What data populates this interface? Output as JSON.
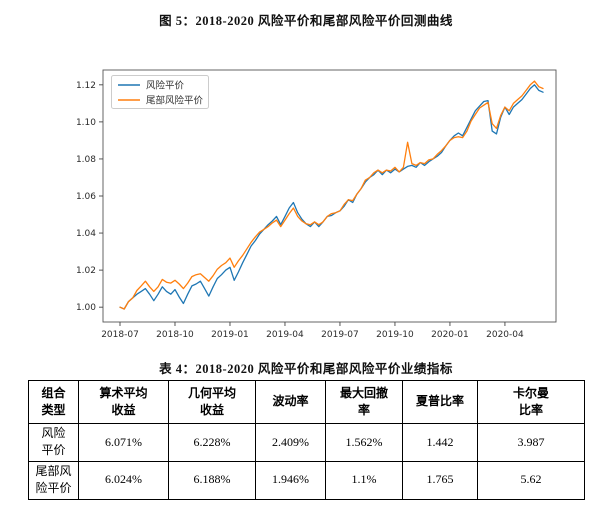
{
  "figure": {
    "title": "图 5：2018-2020 风险平价和尾部风险平价回测曲线"
  },
  "chart_data": {
    "type": "line",
    "title": "图 5：2018-2020 风险平价和尾部风险平价回测曲线",
    "xlabel": "",
    "ylabel": "",
    "grid": false,
    "legend_position": "upper left",
    "ylim": [
      0.992,
      1.128
    ],
    "y_ticks": [
      1.0,
      1.02,
      1.04,
      1.06,
      1.08,
      1.1,
      1.12
    ],
    "x_tick_labels": [
      "2018-07",
      "2018-10",
      "2019-01",
      "2019-04",
      "2019-07",
      "2019-10",
      "2020-01",
      "2020-04"
    ],
    "x_tick_indices": [
      0,
      13,
      26,
      39,
      52,
      65,
      78,
      91
    ],
    "series": [
      {
        "name": "风险平价",
        "color": "#1f77b4",
        "values": [
          1.0,
          0.999,
          1.003,
          1.005,
          1.007,
          1.0085,
          1.01,
          1.007,
          1.0035,
          1.007,
          1.011,
          1.0085,
          1.007,
          1.0095,
          1.0055,
          1.002,
          1.007,
          1.0115,
          1.0125,
          1.014,
          1.01,
          1.006,
          1.011,
          1.0155,
          1.0175,
          1.02,
          1.0215,
          1.0145,
          1.019,
          1.024,
          1.0285,
          1.033,
          1.036,
          1.0395,
          1.042,
          1.0445,
          1.0465,
          1.049,
          1.0445,
          1.049,
          1.0535,
          1.0565,
          1.051,
          1.0475,
          1.045,
          1.0435,
          1.046,
          1.0435,
          1.046,
          1.049,
          1.0495,
          1.051,
          1.052,
          1.0545,
          1.058,
          1.0565,
          1.061,
          1.064,
          1.0675,
          1.07,
          1.0715,
          1.074,
          1.0715,
          1.074,
          1.0725,
          1.0745,
          1.073,
          1.0745,
          1.076,
          1.0765,
          1.0755,
          1.078,
          1.0765,
          1.0785,
          1.08,
          1.0815,
          1.0835,
          1.087,
          1.09,
          1.0925,
          1.094,
          1.0925,
          1.097,
          1.1015,
          1.106,
          1.1085,
          1.111,
          1.1115,
          1.095,
          1.0935,
          1.1025,
          1.108,
          1.104,
          1.108,
          1.11,
          1.112,
          1.115,
          1.118,
          1.12,
          1.117,
          1.116
        ]
      },
      {
        "name": "尾部风险平价",
        "color": "#ff7f0e",
        "values": [
          1.0,
          0.999,
          1.003,
          1.005,
          1.009,
          1.0115,
          1.014,
          1.011,
          1.0085,
          1.011,
          1.015,
          1.0135,
          1.013,
          1.0145,
          1.0125,
          1.01,
          1.013,
          1.0165,
          1.0175,
          1.018,
          1.016,
          1.014,
          1.017,
          1.0205,
          1.0225,
          1.024,
          1.0265,
          1.0215,
          1.025,
          1.028,
          1.0315,
          1.035,
          1.038,
          1.0405,
          1.042,
          1.0435,
          1.0455,
          1.047,
          1.0435,
          1.047,
          1.0505,
          1.0535,
          1.049,
          1.0465,
          1.045,
          1.0445,
          1.046,
          1.0445,
          1.046,
          1.049,
          1.0505,
          1.051,
          1.052,
          1.0555,
          1.058,
          1.0575,
          1.061,
          1.064,
          1.0685,
          1.07,
          1.0725,
          1.074,
          1.0725,
          1.074,
          1.0735,
          1.0755,
          1.073,
          1.0755,
          1.089,
          1.0775,
          1.0765,
          1.078,
          1.0775,
          1.0795,
          1.08,
          1.0825,
          1.0845,
          1.087,
          1.09,
          1.0915,
          1.092,
          1.0915,
          1.095,
          1.1005,
          1.104,
          1.1075,
          1.109,
          1.1105,
          1.099,
          1.0965,
          1.1035,
          1.108,
          1.106,
          1.11,
          1.112,
          1.114,
          1.117,
          1.12,
          1.122,
          1.119,
          1.118
        ]
      }
    ]
  },
  "table": {
    "title": "表 4：2018-2020 风险平价和尾部风险平价业绩指标",
    "columns": [
      "组合\n类型",
      "算术平均\n收益",
      "几何平均\n收益",
      "波动率",
      "最大回撤\n率",
      "夏普比率",
      "卡尔曼\n比率"
    ],
    "rows": [
      [
        "风险\n平价",
        "6.071%",
        "6.228%",
        "2.409%",
        "1.562%",
        "1.442",
        "3.987"
      ],
      [
        "尾部风\n险平价",
        "6.024%",
        "6.188%",
        "1.946%",
        "1.1%",
        "1.765",
        "5.62"
      ]
    ]
  }
}
